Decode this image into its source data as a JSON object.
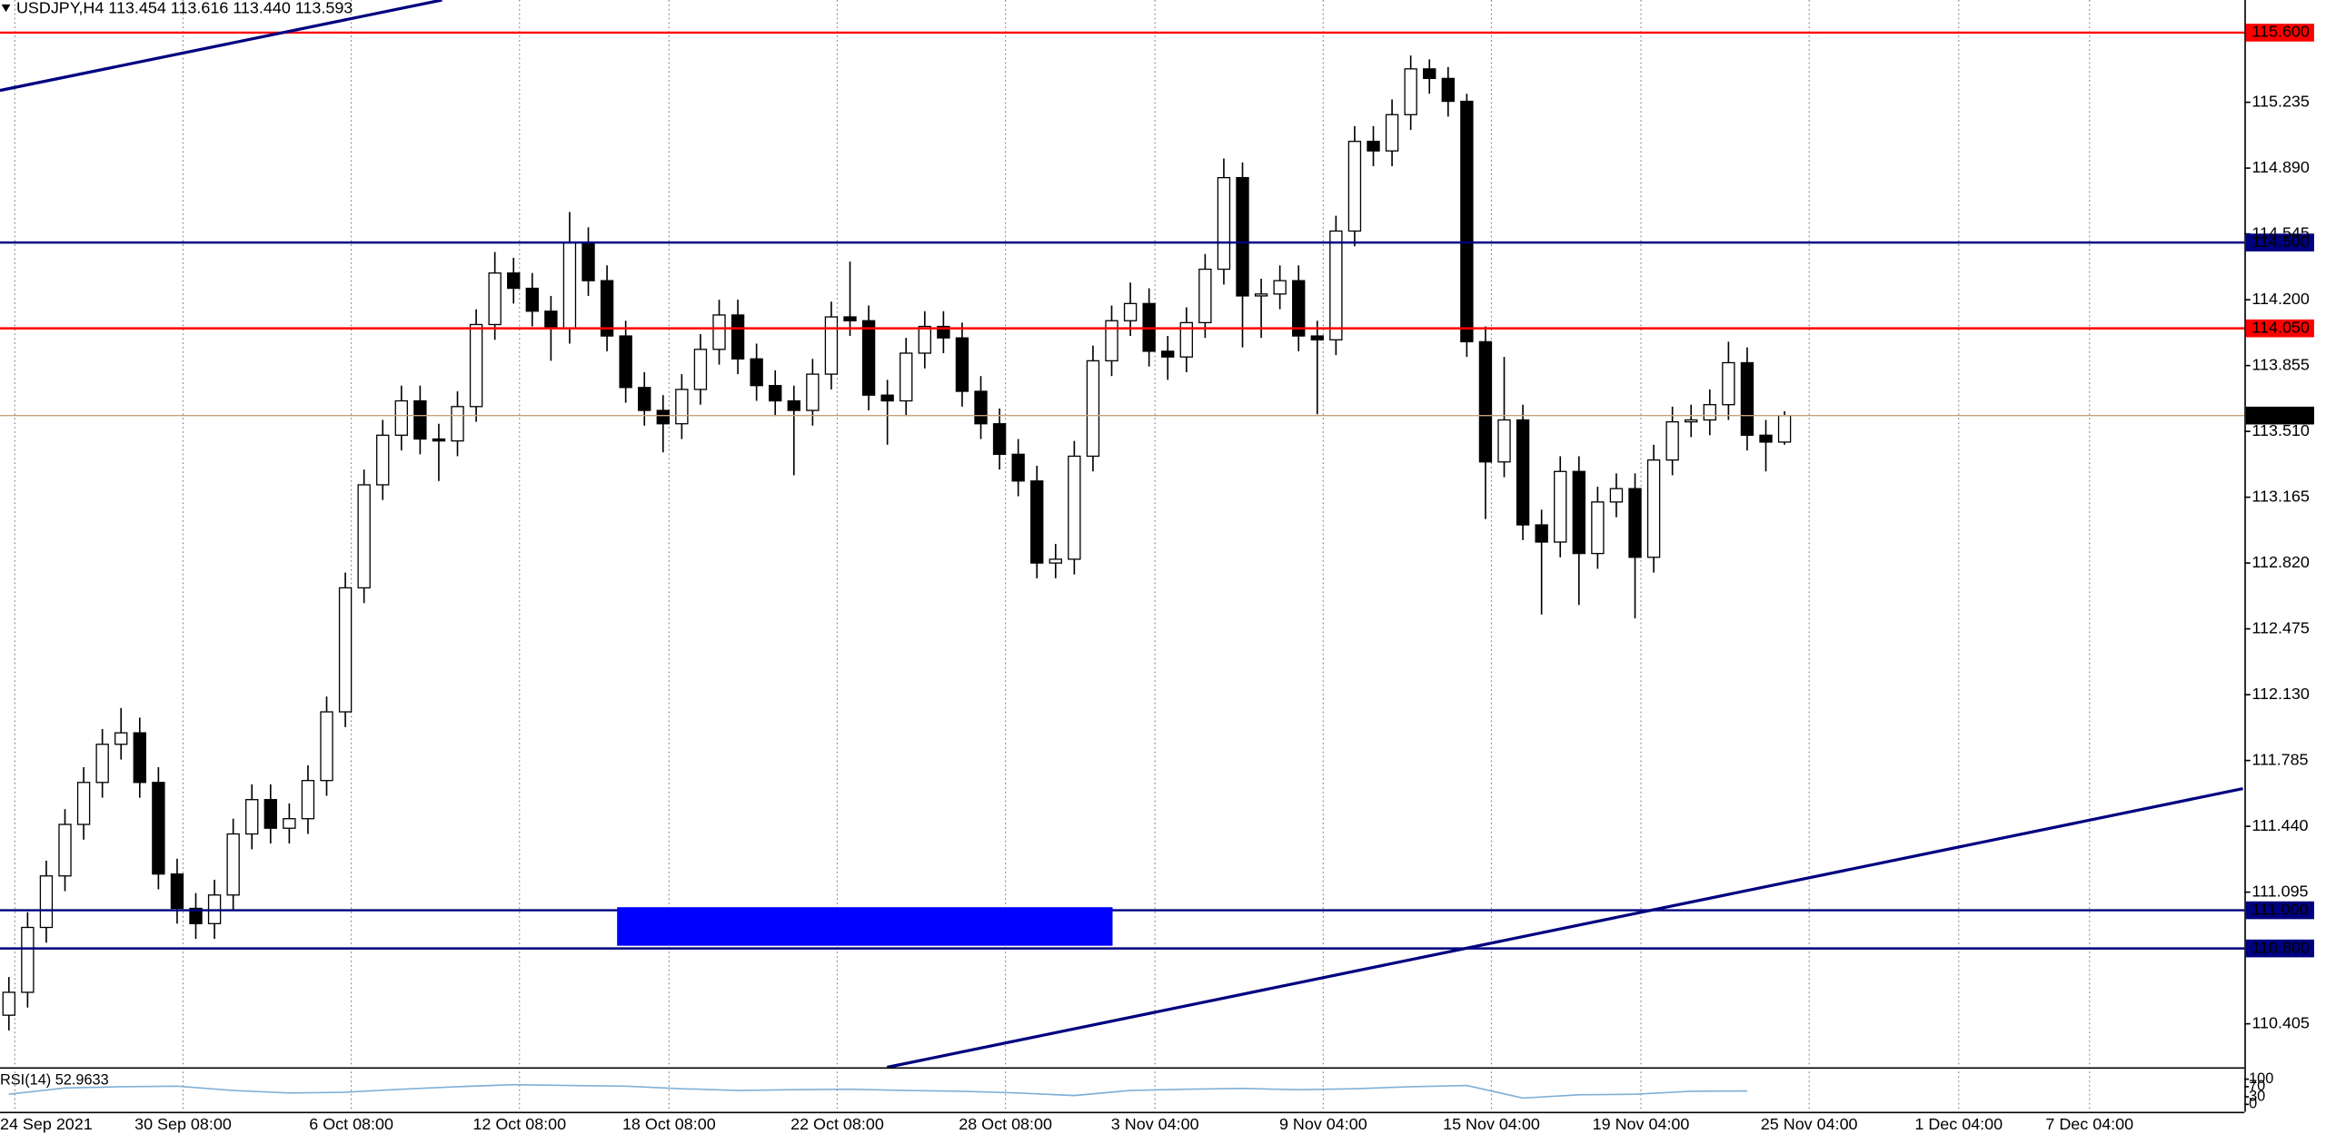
{
  "chart_data": {
    "type": "candlestick",
    "header": "USDJPY,H4  113.454 113.616 113.440 113.593",
    "up_color": "#ffffff",
    "down_color": "#000000",
    "wick_color": "#000000",
    "open": [
      110.45,
      110.57,
      110.91,
      111.18,
      111.45,
      111.67,
      111.87,
      111.93,
      111.67,
      111.19,
      111.01,
      110.93,
      111.08,
      111.4,
      111.58,
      111.43,
      111.48,
      111.68,
      112.04,
      112.69,
      113.23,
      113.49,
      113.67,
      113.47,
      113.46,
      113.64,
      114.07,
      114.34,
      114.26,
      114.14,
      114.05,
      114.5,
      114.3,
      114.01,
      113.74,
      113.62,
      113.55,
      113.73,
      113.94,
      114.12,
      113.89,
      113.75,
      113.67,
      113.62,
      113.81,
      114.11,
      114.09,
      113.7,
      113.67,
      113.92,
      114.06,
      114.0,
      113.72,
      113.55,
      113.39,
      113.25,
      112.82,
      112.84,
      113.38,
      113.88,
      114.09,
      114.18,
      113.93,
      113.9,
      114.08,
      114.36,
      114.84,
      114.22,
      114.23,
      114.3,
      114.01,
      113.99,
      114.56,
      115.03,
      114.98,
      115.17,
      115.41,
      115.36,
      115.24,
      113.98,
      113.35,
      113.57,
      113.02,
      112.93,
      113.3,
      112.87,
      113.14,
      113.21,
      112.85,
      113.36,
      113.56,
      113.57,
      113.65,
      113.87,
      113.49,
      113.454
    ],
    "high": [
      110.65,
      110.99,
      111.26,
      111.53,
      111.75,
      111.95,
      112.06,
      112.01,
      111.75,
      111.27,
      111.09,
      111.16,
      111.48,
      111.66,
      111.66,
      111.56,
      111.76,
      112.12,
      112.77,
      113.31,
      113.57,
      113.75,
      113.75,
      113.55,
      113.72,
      114.15,
      114.45,
      114.42,
      114.34,
      114.22,
      114.66,
      114.58,
      114.38,
      114.09,
      113.82,
      113.7,
      113.81,
      114.02,
      114.2,
      114.2,
      113.97,
      113.83,
      113.75,
      113.89,
      114.19,
      114.4,
      114.17,
      113.78,
      114.0,
      114.14,
      114.14,
      114.08,
      113.8,
      113.63,
      113.47,
      113.33,
      112.92,
      113.46,
      113.96,
      114.17,
      114.29,
      114.26,
      114.01,
      114.16,
      114.44,
      114.94,
      114.92,
      114.31,
      114.38,
      114.38,
      114.09,
      114.64,
      115.11,
      115.11,
      115.25,
      115.48,
      115.46,
      115.42,
      115.28,
      114.06,
      113.9,
      113.65,
      113.1,
      113.38,
      113.38,
      113.22,
      113.29,
      113.29,
      113.44,
      113.64,
      113.65,
      113.73,
      113.98,
      113.95,
      113.57,
      113.616
    ],
    "low": [
      110.37,
      110.49,
      110.83,
      111.1,
      111.37,
      111.59,
      111.79,
      111.59,
      111.11,
      110.93,
      110.85,
      110.85,
      111.0,
      111.32,
      111.35,
      111.35,
      111.4,
      111.6,
      111.96,
      112.61,
      113.15,
      113.41,
      113.39,
      113.25,
      113.38,
      113.56,
      113.99,
      114.18,
      114.06,
      113.88,
      113.97,
      114.22,
      113.93,
      113.66,
      113.54,
      113.4,
      113.47,
      113.65,
      113.86,
      113.81,
      113.67,
      113.59,
      113.28,
      113.54,
      113.73,
      114.01,
      113.62,
      113.44,
      113.59,
      113.84,
      113.92,
      113.64,
      113.47,
      113.31,
      113.17,
      112.74,
      112.74,
      112.76,
      113.3,
      113.8,
      114.01,
      113.85,
      113.78,
      113.82,
      114.0,
      114.28,
      113.95,
      114.0,
      114.15,
      113.93,
      113.6,
      113.91,
      114.48,
      114.9,
      114.9,
      115.09,
      115.28,
      115.16,
      113.9,
      113.05,
      113.27,
      112.94,
      112.55,
      112.85,
      112.6,
      112.79,
      113.06,
      112.53,
      112.77,
      113.28,
      113.48,
      113.49,
      113.57,
      113.41,
      113.3,
      113.44
    ],
    "close": [
      110.57,
      110.91,
      111.18,
      111.45,
      111.67,
      111.87,
      111.93,
      111.67,
      111.19,
      111.01,
      110.93,
      111.08,
      111.4,
      111.58,
      111.43,
      111.48,
      111.68,
      112.04,
      112.69,
      113.23,
      113.49,
      113.67,
      113.47,
      113.46,
      113.64,
      114.07,
      114.34,
      114.26,
      114.14,
      114.05,
      114.5,
      114.3,
      114.01,
      113.74,
      113.62,
      113.55,
      113.73,
      113.94,
      114.12,
      113.89,
      113.75,
      113.67,
      113.62,
      113.81,
      114.11,
      114.09,
      113.7,
      113.67,
      113.92,
      114.06,
      114.0,
      113.72,
      113.55,
      113.39,
      113.25,
      112.82,
      112.84,
      113.38,
      113.88,
      114.09,
      114.18,
      113.93,
      113.9,
      114.08,
      114.36,
      114.84,
      114.22,
      114.23,
      114.3,
      114.01,
      113.99,
      114.56,
      115.03,
      114.98,
      115.17,
      115.41,
      115.36,
      115.24,
      113.98,
      113.35,
      113.57,
      113.02,
      112.93,
      113.3,
      112.87,
      113.14,
      113.21,
      112.85,
      113.36,
      113.56,
      113.57,
      113.65,
      113.87,
      113.49,
      113.454,
      113.593
    ],
    "ylim": [
      110.177,
      115.771
    ],
    "yticks": [
      115.235,
      {
        "value": 114.89,
        "label": "114.890"
      },
      114.545,
      {
        "value": 114.2,
        "label": "114.200"
      },
      113.855,
      {
        "value": 113.51,
        "label": "113.510"
      },
      113.165,
      {
        "value": 112.82,
        "label": "112.820"
      },
      112.475,
      {
        "value": 112.13,
        "label": "112.130"
      },
      111.785,
      {
        "value": 111.44,
        "label": "111.440"
      },
      111.095,
      110.405
    ],
    "xticks": [
      {
        "value": 0,
        "label": "24 Sep 2021"
      },
      {
        "value": 9,
        "label": "30 Sep 08:00"
      },
      {
        "value": 18,
        "label": "6 Oct 08:00"
      },
      {
        "value": 27,
        "label": "12 Oct 08:00"
      },
      {
        "value": 35,
        "label": "18 Oct 08:00"
      },
      {
        "value": 44,
        "label": "22 Oct 08:00"
      },
      {
        "value": 53,
        "label": "28 Oct 08:00"
      },
      {
        "value": 61,
        "label": "3 Nov 04:00"
      },
      {
        "value": 70,
        "label": "9 Nov 04:00"
      },
      {
        "value": 79,
        "label": "15 Nov 04:00"
      },
      {
        "value": 87,
        "label": "19 Nov 04:00"
      },
      {
        "value": 96,
        "label": "25 Nov 04:00"
      },
      {
        "value": 104,
        "label": "1 Dec 04:00"
      },
      {
        "value": 111,
        "label": "7 Dec 04:00"
      }
    ],
    "levels": [
      {
        "value": 115.6,
        "label": "115.600",
        "color": "#ff0000"
      },
      {
        "value": 114.5,
        "label": "114.500",
        "color": "#000080"
      },
      {
        "value": 114.05,
        "label": "114.050",
        "color": "#ff0000"
      },
      {
        "value": 111.0,
        "label": "111.000",
        "color": "#000080"
      },
      {
        "value": 110.8,
        "label": "110.800",
        "color": "#000080"
      }
    ],
    "current_price": 113.593,
    "rsi": {
      "label": "RSI(14) 52.9633",
      "color": "#7fb0d8",
      "ylim": [
        0,
        100
      ],
      "yticks": [
        0,
        30,
        70,
        100
      ],
      "x": [
        0,
        3,
        6,
        9,
        12,
        15,
        18,
        21,
        24,
        27,
        30,
        33,
        36,
        39,
        42,
        45,
        48,
        51,
        54,
        57,
        60,
        63,
        66,
        69,
        72,
        75,
        78,
        81,
        84,
        87,
        90,
        93
      ],
      "values": [
        40,
        65,
        70,
        72,
        55,
        45,
        48,
        60,
        70,
        78,
        75,
        72,
        62,
        55,
        58,
        60,
        55,
        52,
        45,
        35,
        55,
        60,
        63,
        58,
        62,
        70,
        75,
        25,
        38,
        40,
        52,
        53
      ]
    }
  }
}
